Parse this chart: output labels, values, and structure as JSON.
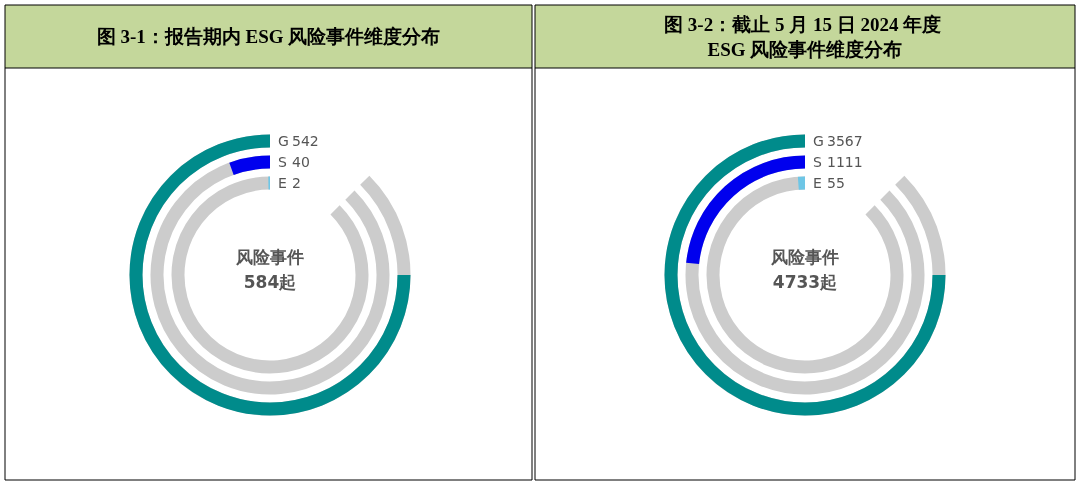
{
  "chart_data": [
    {
      "type": "other",
      "title": "图 3-1：报告期内 ESG 风险事件维度分布",
      "categories": [
        "G",
        "S",
        "E"
      ],
      "values": [
        542,
        40,
        2
      ],
      "colors": [
        "#008b8b",
        "#0000ee",
        "#6ec6e6"
      ],
      "data_labels": true,
      "annotations": [
        "风险事件",
        "584起"
      ]
    },
    {
      "type": "other",
      "title": "图 3-2：截止 5 月 15 日 2024 年度 ESG 风险事件维度分布",
      "categories": [
        "G",
        "S",
        "E"
      ],
      "values": [
        3567,
        1111,
        55
      ],
      "colors": [
        "#008b8b",
        "#0000ee",
        "#6ec6e6"
      ],
      "data_labels": true,
      "annotations": [
        "风险事件",
        "4733起"
      ]
    }
  ]
}
